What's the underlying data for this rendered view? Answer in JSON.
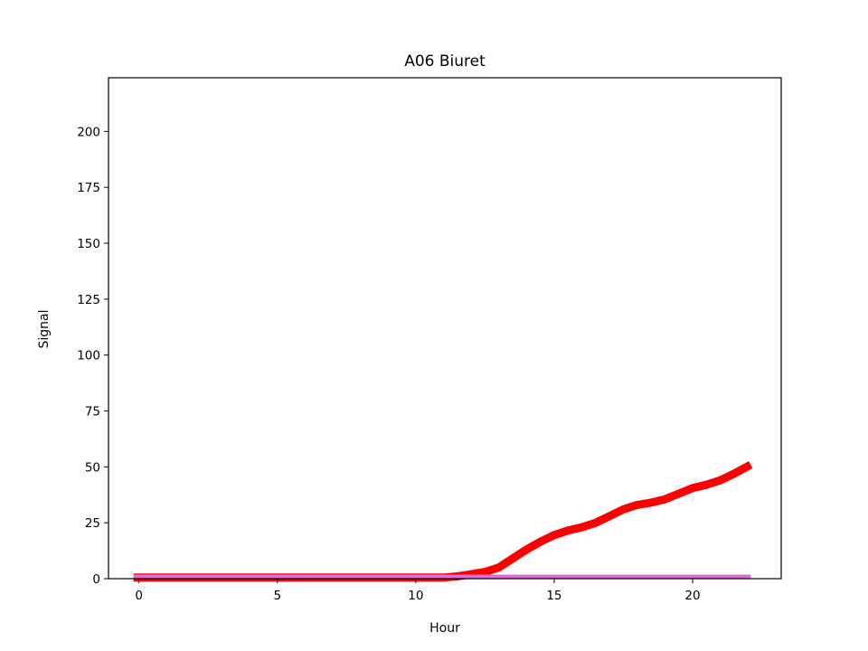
{
  "chart_data": {
    "type": "line",
    "title": "A06 Biuret",
    "xlabel": "Hour",
    "ylabel": "Signal",
    "xlim": [
      -1.1,
      23.2
    ],
    "ylim": [
      0,
      224
    ],
    "xticks": [
      0,
      5,
      10,
      15,
      20
    ],
    "yticks": [
      0,
      25,
      50,
      75,
      100,
      125,
      150,
      175,
      200
    ],
    "grid": false,
    "legend": "none",
    "series": [
      {
        "color": "#ff0000",
        "line_width": "thick",
        "x": [
          -0.2,
          1,
          2,
          3,
          4,
          5,
          6,
          7,
          8,
          9,
          10,
          11,
          11.5,
          12,
          12.5,
          13,
          13.5,
          14,
          14.5,
          15,
          15.5,
          16,
          16.5,
          17,
          17.5,
          18,
          18.5,
          19,
          19.5,
          20,
          20.5,
          21,
          21.5,
          22.1
        ],
        "y": [
          0.5,
          0.5,
          0.5,
          0.5,
          0.5,
          0.5,
          0.5,
          0.5,
          0.5,
          0.5,
          0.5,
          0.5,
          1,
          2,
          3,
          5,
          9,
          13,
          16.5,
          19.5,
          21.5,
          23,
          25,
          28,
          31,
          33,
          34,
          35.5,
          38,
          40.5,
          42,
          44,
          47,
          51
        ]
      },
      {
        "color": "#da70d6",
        "line_width": "medium",
        "x": [
          -0.2,
          22.1
        ],
        "y": [
          1,
          1
        ]
      }
    ]
  }
}
